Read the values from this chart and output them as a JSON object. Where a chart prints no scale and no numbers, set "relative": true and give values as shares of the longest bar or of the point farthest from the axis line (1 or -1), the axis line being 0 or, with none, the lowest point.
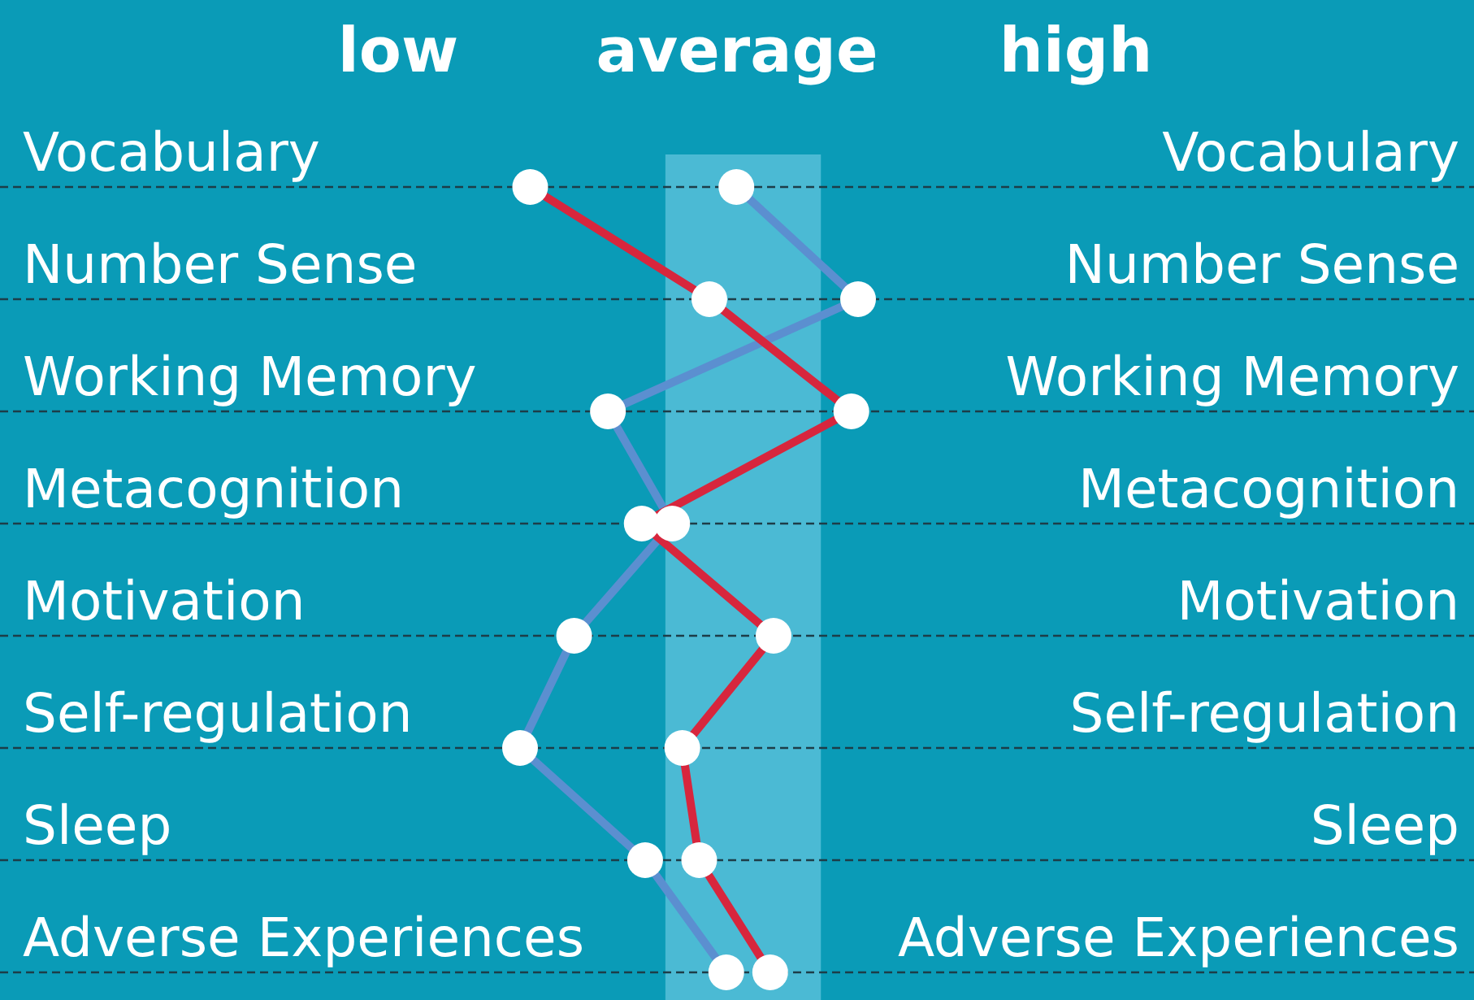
{
  "chart_data": {
    "type": "line",
    "orientation": "horizontal",
    "relative": true,
    "categories": [
      "Vocabulary",
      "Number Sense",
      "Working Memory",
      "Metacognition",
      "Motivation",
      "Self-regulation",
      "Sleep",
      "Adverse Experiences"
    ],
    "annotations": [
      "low",
      "average",
      "high"
    ],
    "series": [
      {
        "color": "#5b8fd0",
        "values": [
          0.64,
          1.0,
          0.26,
          0.45,
          0.16,
          0,
          0.37,
          0.61
        ]
      },
      {
        "color": "#d7263d",
        "values": [
          0.03,
          0.56,
          0.98,
          0.36,
          0.75,
          0.48,
          0.53,
          0.74
        ]
      }
    ],
    "bands": [
      {
        "axis": "x",
        "from": 0.43,
        "to": 0.89,
        "color": "#4bbad4"
      }
    ],
    "grid": "y",
    "marker": "circle",
    "line_style": "solid"
  }
}
